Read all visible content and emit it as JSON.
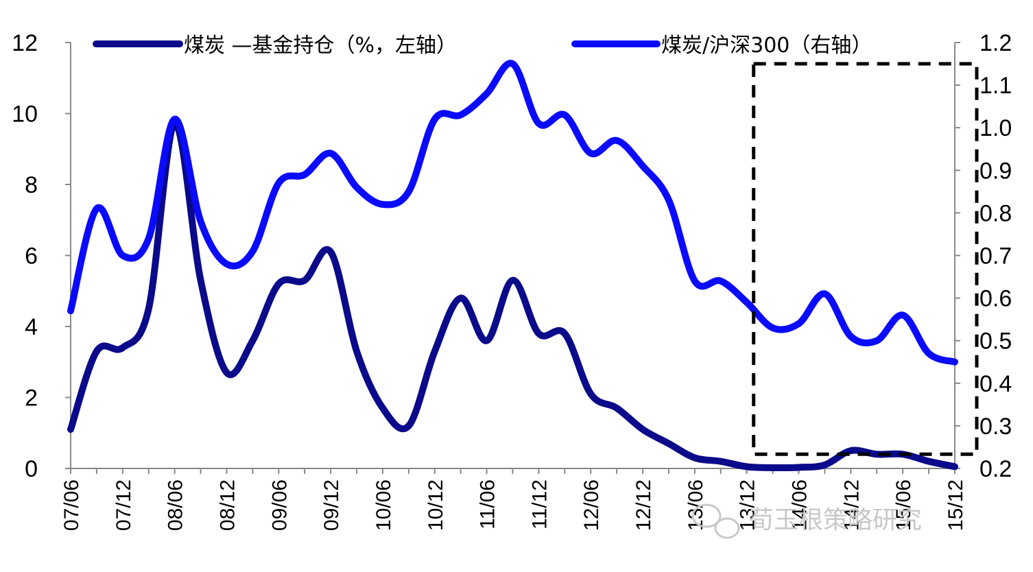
{
  "chart_data": {
    "type": "line",
    "x": [
      "07/06",
      "07/09",
      "07/12",
      "08/03",
      "08/06",
      "08/09",
      "08/12",
      "09/03",
      "09/06",
      "09/09",
      "09/12",
      "10/03",
      "10/06",
      "10/09",
      "10/12",
      "11/03",
      "11/06",
      "11/09",
      "11/12",
      "12/03",
      "12/06",
      "12/09",
      "12/12",
      "13/03",
      "13/06",
      "13/09",
      "13/12",
      "14/03",
      "14/06",
      "14/09",
      "14/12",
      "15/03",
      "15/06",
      "15/09",
      "15/12"
    ],
    "x_tick_labels": [
      "07/06",
      "07/12",
      "08/06",
      "08/12",
      "09/06",
      "09/12",
      "10/06",
      "10/12",
      "11/06",
      "11/12",
      "12/06",
      "12/12",
      "13/06",
      "13/12",
      "14/06",
      "14/12",
      "15/06",
      "15/12"
    ],
    "series": [
      {
        "name": "煤炭 —基金持仓（%，左轴）",
        "axis": "left",
        "color": "#0a0a8a",
        "values": [
          1.1,
          3.3,
          3.4,
          4.5,
          9.7,
          5.3,
          2.7,
          3.6,
          5.2,
          5.3,
          6.1,
          3.3,
          1.7,
          1.2,
          3.3,
          4.8,
          3.6,
          5.3,
          3.8,
          3.8,
          2.1,
          1.7,
          1.1,
          0.7,
          0.3,
          0.2,
          0.05,
          0.02,
          0.03,
          0.1,
          0.5,
          0.4,
          0.4,
          0.2,
          0.05
        ]
      },
      {
        "name": "煤炭/沪深300（右轴）",
        "axis": "right",
        "color": "#0a0aff",
        "values": [
          0.57,
          0.81,
          0.7,
          0.74,
          1.02,
          0.78,
          0.68,
          0.71,
          0.87,
          0.89,
          0.94,
          0.86,
          0.82,
          0.85,
          1.02,
          1.03,
          1.08,
          1.15,
          1.01,
          1.03,
          0.94,
          0.97,
          0.91,
          0.83,
          0.64,
          0.64,
          0.59,
          0.53,
          0.54,
          0.61,
          0.51,
          0.5,
          0.56,
          0.47,
          0.45
        ]
      }
    ],
    "left_axis": {
      "ylim": [
        0,
        12
      ],
      "ticks": [
        "0",
        "2",
        "4",
        "6",
        "8",
        "10",
        "12"
      ]
    },
    "right_axis": {
      "ylim": [
        0.2,
        1.2
      ],
      "ticks": [
        "0.2",
        "0.3",
        "0.4",
        "0.5",
        "0.6",
        "0.7",
        "0.8",
        "0.9",
        "1.0",
        "1.1",
        "1.2"
      ]
    },
    "annotation": {
      "type": "dashed-box",
      "x_from": "13/12",
      "x_to": "15/12",
      "y_left_from": 0.4,
      "y_left_to": 11.4
    },
    "grid": false,
    "legend_position": "top"
  },
  "watermark": {
    "text": "荀玉根策略研究",
    "icon": "wechat-icon"
  }
}
